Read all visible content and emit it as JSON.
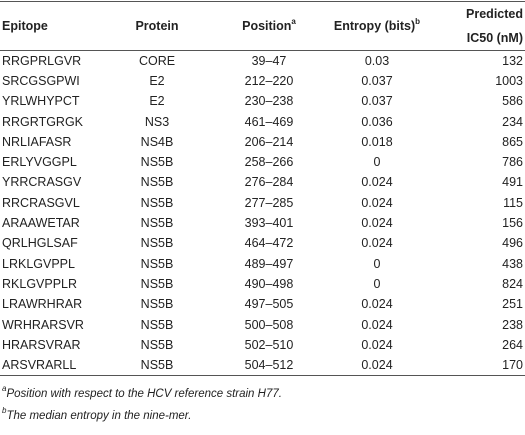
{
  "table": {
    "header": [
      {
        "text": "Epitope"
      },
      {
        "text": "Protein"
      },
      {
        "text": "Position",
        "sup": "a"
      },
      {
        "text": "Entropy (bits)",
        "sup": "b"
      },
      {
        "text": "Predicted IC50 (nM)"
      }
    ],
    "rows": [
      [
        "RRGPRLGVR",
        "CORE",
        "39–47",
        0.03,
        132
      ],
      [
        "SRCGSGPWI",
        "E2",
        "212–220",
        0.037,
        1003
      ],
      [
        "YRLWHYPCT",
        "E2",
        "230–238",
        0.037,
        586
      ],
      [
        "RRGRTGRGK",
        "NS3",
        "461–469",
        0.036,
        234
      ],
      [
        "NRLIAFASR",
        "NS4B",
        "206–214",
        0.018,
        865
      ],
      [
        "ERLYVGGPL",
        "NS5B",
        "258–266",
        0,
        786
      ],
      [
        "YRRCRASGV",
        "NS5B",
        "276–284",
        0.024,
        491
      ],
      [
        "RRCRASGVL",
        "NS5B",
        "277–285",
        0.024,
        115
      ],
      [
        "ARAAWETAR",
        "NS5B",
        "393–401",
        0.024,
        156
      ],
      [
        "QRLHGLSAF",
        "NS5B",
        "464–472",
        0.024,
        496
      ],
      [
        "LRKLGVPPL",
        "NS5B",
        "489–497",
        0,
        438
      ],
      [
        "RKLGVPPLR",
        "NS5B",
        "490–498",
        0,
        824
      ],
      [
        "LRAWRHRAR",
        "NS5B",
        "497–505",
        0.024,
        251
      ],
      [
        "WRHRARSVR",
        "NS5B",
        "500–508",
        0.024,
        238
      ],
      [
        "HRARSVRAR",
        "NS5B",
        "502–510",
        0.024,
        264
      ],
      [
        "ARSVRARLL",
        "NS5B",
        "504–512",
        0.024,
        170
      ]
    ]
  },
  "footnotes": [
    {
      "mark": "a",
      "text": "Position with respect to the HCV reference strain H77."
    },
    {
      "mark": "b",
      "text": "The median entropy in the nine-mer."
    }
  ]
}
